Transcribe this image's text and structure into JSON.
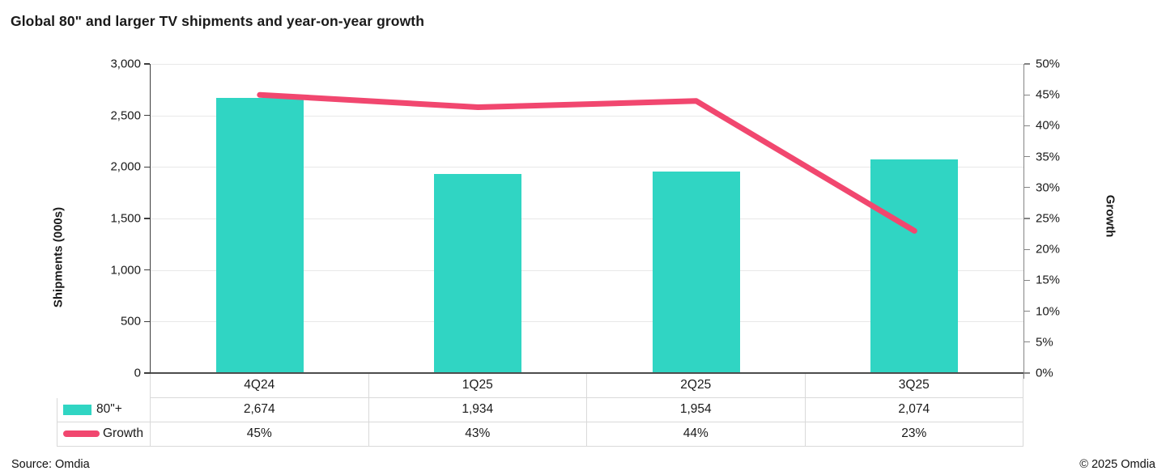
{
  "title": "Global 80\" and larger TV shipments and year-on-year growth",
  "footer": {
    "source": "Source: Omdia",
    "copyright": "© 2025 Omdia"
  },
  "colors": {
    "bar": "#30d5c3",
    "line": "#f1476f",
    "grid": "#e8e8e8",
    "table_border": "#d9d9d9",
    "axis_left": "#3d3d3d",
    "axis_right": "#848484",
    "text": "#1a1a1a"
  },
  "chart_data": {
    "type": "combo-bar-line",
    "title": "Global 80\" and larger TV shipments and year-on-year growth",
    "categories": [
      "4Q24",
      "1Q25",
      "2Q25",
      "3Q25"
    ],
    "series": [
      {
        "name": "80\"+",
        "type": "bar",
        "axis": "left",
        "values": [
          2674,
          1934,
          1954,
          2074
        ]
      },
      {
        "name": "Growth",
        "type": "line",
        "axis": "right",
        "values": [
          45,
          43,
          44,
          23
        ]
      }
    ],
    "y_left": {
      "title": "Shipments (000s)",
      "min": 0,
      "max": 3000,
      "step": 500,
      "tick_labels": [
        "0",
        "500",
        "1,000",
        "1,500",
        "2,000",
        "2,500",
        "3,000"
      ]
    },
    "y_right": {
      "title": "Growth",
      "min": 0,
      "max": 50,
      "step": 5,
      "tick_labels": [
        "0%",
        "5%",
        "10%",
        "15%",
        "20%",
        "25%",
        "30%",
        "35%",
        "40%",
        "45%",
        "50%"
      ]
    },
    "grid": true,
    "legend_position": "table-left",
    "table": {
      "shipments": [
        "2,674",
        "1,934",
        "1,954",
        "2,074"
      ],
      "growth": [
        "45%",
        "43%",
        "44%",
        "23%"
      ]
    }
  }
}
